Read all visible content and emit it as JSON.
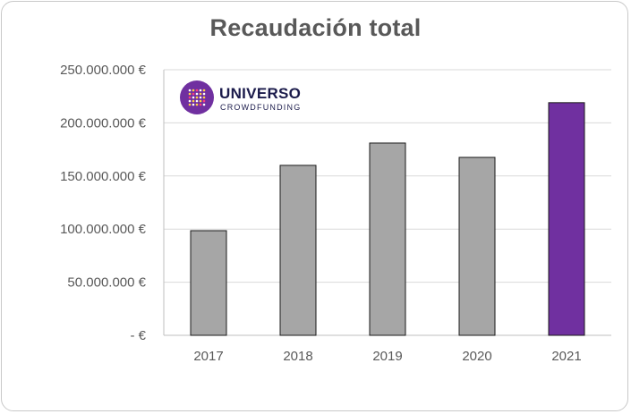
{
  "chart_data": {
    "type": "bar",
    "title": "Recaudación total",
    "categories": [
      "2017",
      "2018",
      "2019",
      "2020",
      "2021"
    ],
    "values": [
      98500000,
      160000000,
      181000000,
      167500000,
      219000000
    ],
    "bar_colors": [
      "#a6a6a6",
      "#a6a6a6",
      "#a6a6a6",
      "#a6a6a6",
      "#7030a0"
    ],
    "ylim": [
      0,
      250000000
    ],
    "yticks": [
      0,
      50000000,
      100000000,
      150000000,
      200000000,
      250000000
    ],
    "ytick_labels": [
      "-  €",
      "50.000.000 €",
      "100.000.000 €",
      "150.000.000 €",
      "200.000.000 €",
      "250.000.000 €"
    ],
    "grid": true,
    "legend": "none"
  },
  "logo": {
    "word": "UNIVERSO",
    "subtitle": "CROWDFUNDING",
    "brand_color": "#7030a0"
  }
}
